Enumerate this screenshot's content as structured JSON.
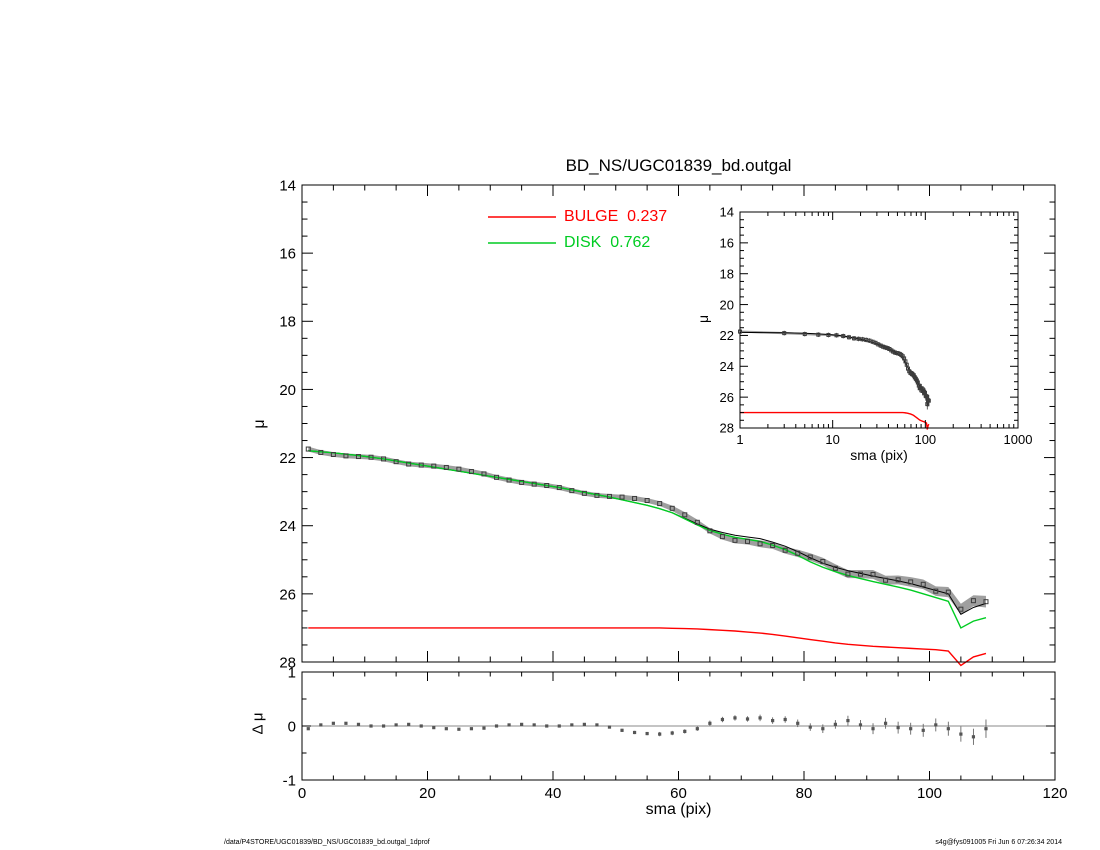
{
  "title": "BD_NS/UGC01839_bd.outgal",
  "footer": {
    "left": "/data/P4STORE/UGC01839/BD_NS/UGC01839_bd.outgal_1dprof",
    "right": "s4g@fys091005  Fri Jun  6 07:26:34 2014"
  },
  "chart_data": [
    {
      "id": "main-profile",
      "type": "line",
      "title": "BD_NS/UGC01839_bd.outgal",
      "xlabel": "sma (pix)",
      "ylabel": "μ",
      "xlim": [
        0,
        120
      ],
      "ylim": [
        28,
        14
      ],
      "xticks": [
        0,
        20,
        40,
        60,
        80,
        100,
        120
      ],
      "yticks": [
        14,
        16,
        18,
        20,
        22,
        24,
        26,
        28
      ],
      "x_minor": 5,
      "y_minor": 0.5,
      "grid": false,
      "legend": {
        "position": "top-center",
        "entries": [
          {
            "label": "BULGE  0.237",
            "color": "#ff0000",
            "fraction": 0.237
          },
          {
            "label": "DISK  0.762",
            "color": "#00cc22",
            "fraction": 0.762
          }
        ]
      },
      "x": [
        1,
        3,
        5,
        7,
        9,
        11,
        13,
        15,
        17,
        19,
        21,
        23,
        25,
        27,
        29,
        31,
        33,
        35,
        37,
        39,
        41,
        43,
        45,
        47,
        49,
        51,
        53,
        55,
        57,
        59,
        61,
        63,
        65,
        67,
        69,
        71,
        73,
        75,
        77,
        79,
        81,
        83,
        85,
        87,
        89,
        91,
        93,
        95,
        97,
        99,
        101,
        103,
        105,
        107,
        109
      ],
      "series": [
        {
          "name": "observed profile",
          "style": "band+squares",
          "color": "#9a9a9a",
          "marker_color": "#3c3c3c",
          "values": [
            21.75,
            21.85,
            21.91,
            21.95,
            21.97,
            21.99,
            22.04,
            22.12,
            22.19,
            22.22,
            22.25,
            22.29,
            22.34,
            22.41,
            22.48,
            22.58,
            22.66,
            22.73,
            22.78,
            22.82,
            22.88,
            22.97,
            23.05,
            23.11,
            23.14,
            23.16,
            23.2,
            23.26,
            23.35,
            23.49,
            23.68,
            23.9,
            24.15,
            24.32,
            24.43,
            24.46,
            24.53,
            24.58,
            24.72,
            24.81,
            24.92,
            25.05,
            25.25,
            25.42,
            25.42,
            25.43,
            25.6,
            25.59,
            25.65,
            25.72,
            25.92,
            25.95,
            26.45,
            26.2,
            26.23
          ],
          "err": [
            0.07,
            0.07,
            0.07,
            0.07,
            0.07,
            0.07,
            0.07,
            0.07,
            0.07,
            0.07,
            0.07,
            0.07,
            0.07,
            0.07,
            0.07,
            0.07,
            0.07,
            0.07,
            0.07,
            0.07,
            0.07,
            0.07,
            0.07,
            0.07,
            0.07,
            0.07,
            0.07,
            0.07,
            0.07,
            0.08,
            0.08,
            0.08,
            0.08,
            0.09,
            0.09,
            0.09,
            0.1,
            0.1,
            0.1,
            0.11,
            0.11,
            0.11,
            0.12,
            0.12,
            0.12,
            0.13,
            0.13,
            0.13,
            0.14,
            0.14,
            0.14,
            0.15,
            0.16,
            0.16,
            0.17
          ]
        },
        {
          "name": "total model",
          "style": "line",
          "color": "#000000",
          "width": 1,
          "values": [
            21.8,
            21.83,
            21.86,
            21.9,
            21.94,
            21.99,
            22.04,
            22.1,
            22.16,
            22.22,
            22.28,
            22.34,
            22.4,
            22.46,
            22.52,
            22.58,
            22.64,
            22.7,
            22.76,
            22.82,
            22.88,
            22.95,
            23.02,
            23.09,
            23.16,
            23.24,
            23.32,
            23.4,
            23.5,
            23.62,
            23.78,
            23.95,
            24.1,
            24.2,
            24.28,
            24.33,
            24.38,
            24.48,
            24.6,
            24.76,
            24.94,
            25.1,
            25.22,
            25.32,
            25.4,
            25.48,
            25.55,
            25.62,
            25.7,
            25.8,
            25.9,
            26.0,
            26.6,
            26.4,
            26.28
          ]
        },
        {
          "name": "disk model",
          "style": "line",
          "color": "#00cc22",
          "width": 1.4,
          "values": [
            21.8,
            21.83,
            21.86,
            21.9,
            21.94,
            21.99,
            22.04,
            22.1,
            22.16,
            22.22,
            22.28,
            22.34,
            22.4,
            22.46,
            22.52,
            22.58,
            22.64,
            22.7,
            22.76,
            22.82,
            22.88,
            22.95,
            23.02,
            23.09,
            23.16,
            23.24,
            23.32,
            23.4,
            23.5,
            23.62,
            23.8,
            23.98,
            24.14,
            24.25,
            24.34,
            24.4,
            24.46,
            24.57,
            24.7,
            24.87,
            25.06,
            25.22,
            25.35,
            25.46,
            25.55,
            25.64,
            25.72,
            25.8,
            25.89,
            26.0,
            26.11,
            26.22,
            27.0,
            26.8,
            26.7
          ]
        },
        {
          "name": "bulge model",
          "style": "line",
          "color": "#ff0000",
          "width": 1.4,
          "values": [
            27.0,
            27.0,
            27.0,
            27.0,
            27.0,
            27.0,
            27.0,
            27.0,
            27.0,
            27.0,
            27.0,
            27.0,
            27.0,
            27.0,
            27.0,
            27.0,
            27.0,
            27.0,
            27.0,
            27.0,
            27.0,
            27.0,
            27.0,
            27.0,
            27.0,
            27.0,
            27.0,
            27.0,
            27.0,
            27.01,
            27.02,
            27.03,
            27.05,
            27.07,
            27.09,
            27.12,
            27.15,
            27.19,
            27.24,
            27.29,
            27.34,
            27.39,
            27.44,
            27.48,
            27.51,
            27.54,
            27.56,
            27.58,
            27.6,
            27.62,
            27.64,
            27.68,
            28.1,
            27.85,
            27.75
          ]
        }
      ]
    },
    {
      "id": "inset-log-profile",
      "type": "line",
      "xscale": "log",
      "xlabel": "sma (pix)",
      "ylabel": "μ",
      "xlim": [
        1,
        1000
      ],
      "ylim": [
        28,
        14
      ],
      "xticks": [
        1,
        10,
        100,
        1000
      ],
      "yticks": [
        14,
        16,
        18,
        20,
        22,
        24,
        26,
        28
      ],
      "y_minor": 0.5,
      "grid": false,
      "note": "same profile data as main panel, logarithmic x-axis",
      "series_from": "main-profile",
      "series_shown": [
        "observed profile",
        "total model",
        "bulge model"
      ]
    },
    {
      "id": "residuals",
      "type": "scatter",
      "xlabel": "sma (pix)",
      "ylabel": "Δ μ",
      "xlim": [
        0,
        120
      ],
      "ylim": [
        -1,
        1
      ],
      "xticks": [
        0,
        20,
        40,
        60,
        80,
        100,
        120
      ],
      "yticks": [
        -1,
        0,
        1
      ],
      "x_minor": 5,
      "y_minor": 0.5,
      "zero_line": true,
      "marker_color": "#555555",
      "x_from": "main-profile",
      "values": [
        -0.05,
        0.02,
        0.05,
        0.05,
        0.03,
        0.0,
        0.0,
        0.02,
        0.03,
        0.0,
        -0.03,
        -0.05,
        -0.06,
        -0.05,
        -0.04,
        0.0,
        0.02,
        0.03,
        0.02,
        0.0,
        0.0,
        0.02,
        0.03,
        0.02,
        -0.02,
        -0.08,
        -0.12,
        -0.14,
        -0.15,
        -0.13,
        -0.1,
        -0.05,
        0.05,
        0.12,
        0.15,
        0.13,
        0.15,
        0.1,
        0.12,
        0.05,
        -0.02,
        -0.05,
        0.03,
        0.1,
        0.02,
        -0.05,
        0.05,
        -0.03,
        -0.05,
        -0.08,
        0.02,
        -0.05,
        -0.15,
        -0.2,
        -0.05
      ],
      "err": [
        0.02,
        0.02,
        0.02,
        0.02,
        0.02,
        0.02,
        0.02,
        0.02,
        0.02,
        0.02,
        0.02,
        0.02,
        0.02,
        0.02,
        0.02,
        0.02,
        0.02,
        0.02,
        0.02,
        0.02,
        0.02,
        0.02,
        0.02,
        0.02,
        0.02,
        0.03,
        0.03,
        0.03,
        0.04,
        0.04,
        0.04,
        0.04,
        0.05,
        0.05,
        0.05,
        0.05,
        0.06,
        0.06,
        0.06,
        0.07,
        0.07,
        0.08,
        0.08,
        0.09,
        0.09,
        0.1,
        0.1,
        0.11,
        0.11,
        0.12,
        0.12,
        0.13,
        0.14,
        0.15,
        0.17
      ]
    }
  ]
}
